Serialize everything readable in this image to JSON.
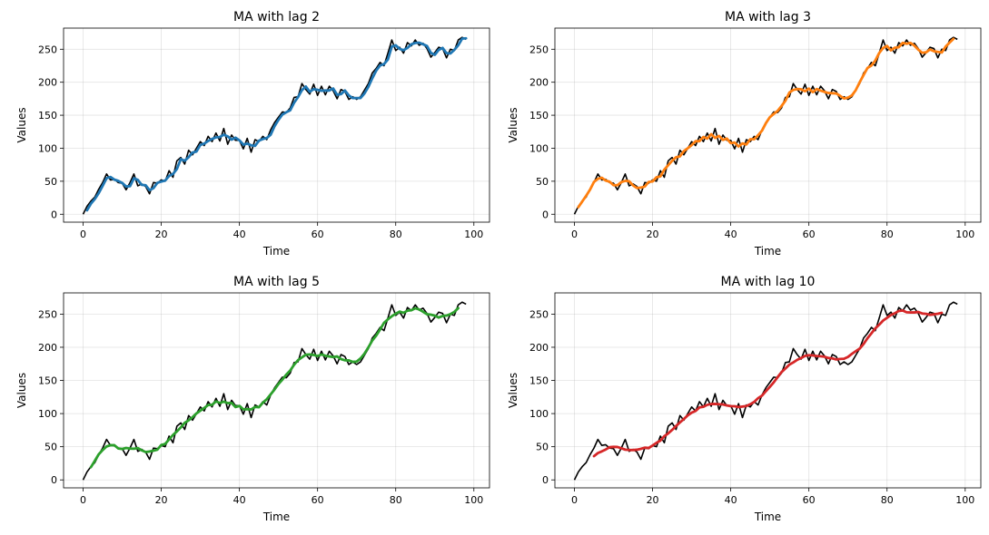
{
  "colors": {
    "raw": "#000000",
    "lag2": "#1f77b4",
    "lag3": "#ff7f0e",
    "lag5": "#2ca02c",
    "lag10": "#d62728"
  },
  "raw_series": [
    0,
    12,
    20,
    26,
    38,
    48,
    61,
    52,
    53,
    48,
    47,
    37,
    48,
    61,
    43,
    46,
    42,
    31,
    48,
    47,
    52,
    50,
    66,
    56,
    81,
    86,
    76,
    97,
    90,
    100,
    110,
    104,
    118,
    110,
    123,
    111,
    130,
    106,
    120,
    112,
    112,
    99,
    115,
    94,
    113,
    110,
    118,
    113,
    128,
    139,
    147,
    155,
    154,
    161,
    177,
    178,
    198,
    189,
    182,
    197,
    180,
    194,
    181,
    194,
    187,
    175,
    189,
    186,
    174,
    178,
    174,
    178,
    188,
    198,
    214,
    221,
    230,
    225,
    244,
    264,
    248,
    253,
    244,
    260,
    255,
    264,
    256,
    259,
    251,
    238,
    245,
    253,
    251,
    237,
    250,
    248,
    264,
    268,
    265
  ],
  "chart_data": [
    {
      "type": "line",
      "title": "MA with lag 2",
      "xlabel": "Time",
      "ylabel": "Values",
      "xlim": [
        -5,
        104
      ],
      "ylim": [
        -12,
        282
      ],
      "xticks": [
        0,
        20,
        40,
        60,
        80,
        100
      ],
      "yticks": [
        0,
        50,
        100,
        150,
        200,
        250
      ],
      "grid": true,
      "lag": 2,
      "series": [
        {
          "role": "raw",
          "color": "#000000"
        },
        {
          "role": "ma",
          "lag": 2,
          "color": "#1f77b4"
        }
      ]
    },
    {
      "type": "line",
      "title": "MA with lag 3",
      "xlabel": "Time",
      "ylabel": "Values",
      "xlim": [
        -5,
        104
      ],
      "ylim": [
        -12,
        282
      ],
      "xticks": [
        0,
        20,
        40,
        60,
        80,
        100
      ],
      "yticks": [
        0,
        50,
        100,
        150,
        200,
        250
      ],
      "grid": true,
      "lag": 3,
      "series": [
        {
          "role": "raw",
          "color": "#000000"
        },
        {
          "role": "ma",
          "lag": 3,
          "color": "#ff7f0e"
        }
      ]
    },
    {
      "type": "line",
      "title": "MA with lag 5",
      "xlabel": "Time",
      "ylabel": "Values",
      "xlim": [
        -5,
        104
      ],
      "ylim": [
        -12,
        282
      ],
      "xticks": [
        0,
        20,
        40,
        60,
        80,
        100
      ],
      "yticks": [
        0,
        50,
        100,
        150,
        200,
        250
      ],
      "grid": true,
      "lag": 5,
      "series": [
        {
          "role": "raw",
          "color": "#000000"
        },
        {
          "role": "ma",
          "lag": 5,
          "color": "#2ca02c"
        }
      ]
    },
    {
      "type": "line",
      "title": "MA with lag 10",
      "xlabel": "Time",
      "ylabel": "Values",
      "xlim": [
        -5,
        104
      ],
      "ylim": [
        -12,
        282
      ],
      "xticks": [
        0,
        20,
        40,
        60,
        80,
        100
      ],
      "yticks": [
        0,
        50,
        100,
        150,
        200,
        250
      ],
      "grid": true,
      "lag": 10,
      "series": [
        {
          "role": "raw",
          "color": "#000000"
        },
        {
          "role": "ma",
          "lag": 10,
          "color": "#d62728"
        }
      ]
    }
  ]
}
